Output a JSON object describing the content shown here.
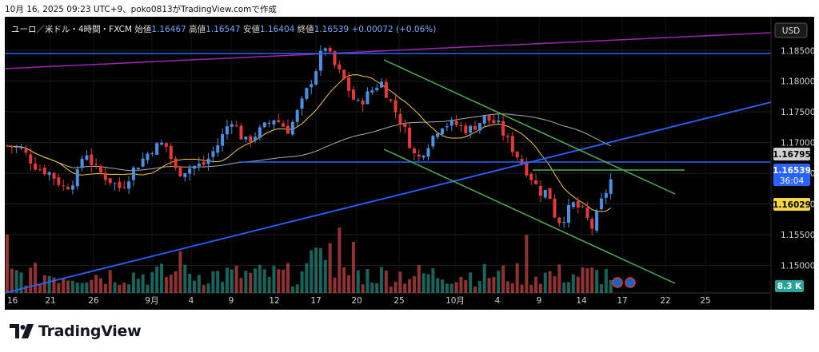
{
  "caption": "10月 16, 2025 09:23 UTC+9、poko0813がTradingView.comで作成",
  "legend": {
    "symbol": "ユーロ／米ドル・4時間・FXCM",
    "open_label": "始値",
    "open": "1.16467",
    "high_label": "高値",
    "high": "1.16547",
    "low_label": "安値",
    "low": "1.16404",
    "close_label": "終値",
    "close": "1.16539",
    "change": "+0.00072 (+0.06%)"
  },
  "footer": {
    "brand": "TradingView",
    "logo_icon": "tradingview-logo-icon"
  },
  "colors": {
    "background": "#000000",
    "up": "#4a90e2",
    "down": "#e53935",
    "trend_blue": "#2962ff",
    "trend_purple": "#9c27b0",
    "channel_green": "#4caf50",
    "ma_fast": "#f5c542",
    "ma_slow": "#d8d8d8",
    "vol_up": "#26a69a",
    "vol_down": "#ef5350"
  },
  "chart_data": {
    "type": "candlestick",
    "symbol": "EUR/USD",
    "timeframe": "4時間",
    "y_axis": {
      "currency": "USD",
      "ticks": [
        "1.15000",
        "1.15500",
        "1.16000",
        "1.16500",
        "1.17000",
        "1.17500",
        "1.18000",
        "1.18500"
      ],
      "ylim": [
        1.1455,
        1.1905
      ]
    },
    "x_axis": {
      "ticks": [
        "16",
        "21",
        "26",
        "9月",
        "4",
        "9",
        "12",
        "17",
        "20",
        "25",
        "10月",
        "4",
        "9",
        "14",
        "17",
        "22",
        "25"
      ]
    },
    "price_labels": [
      {
        "value": "1.16795",
        "sub": "",
        "bg": "#d0d0d0",
        "fg": "#000000"
      },
      {
        "value": "1.16539",
        "sub": "36:04",
        "bg": "#2962ff",
        "fg": "#ffffff"
      },
      {
        "value": "1.16029",
        "sub": "",
        "bg": "#f5d742",
        "fg": "#000000"
      }
    ],
    "volume_label": "8.3 K",
    "approx_close_path": [
      {
        "x": "16",
        "y": 1.1695
      },
      {
        "x": "21",
        "y": 1.1645
      },
      {
        "x": "26",
        "y": 1.1625
      },
      {
        "x": "9月",
        "y": 1.169
      },
      {
        "x": "4",
        "y": 1.166
      },
      {
        "x": "9",
        "y": 1.173
      },
      {
        "x": "12",
        "y": 1.1735
      },
      {
        "x": "17",
        "y": 1.186
      },
      {
        "x": "20",
        "y": 1.176
      },
      {
        "x": "25",
        "y": 1.167
      },
      {
        "x": "10月",
        "y": 1.173
      },
      {
        "x": "4",
        "y": 1.17
      },
      {
        "x": "9",
        "y": 1.162
      },
      {
        "x": "14",
        "y": 1.157
      },
      {
        "x": "17",
        "y": 1.1654
      }
    ]
  }
}
